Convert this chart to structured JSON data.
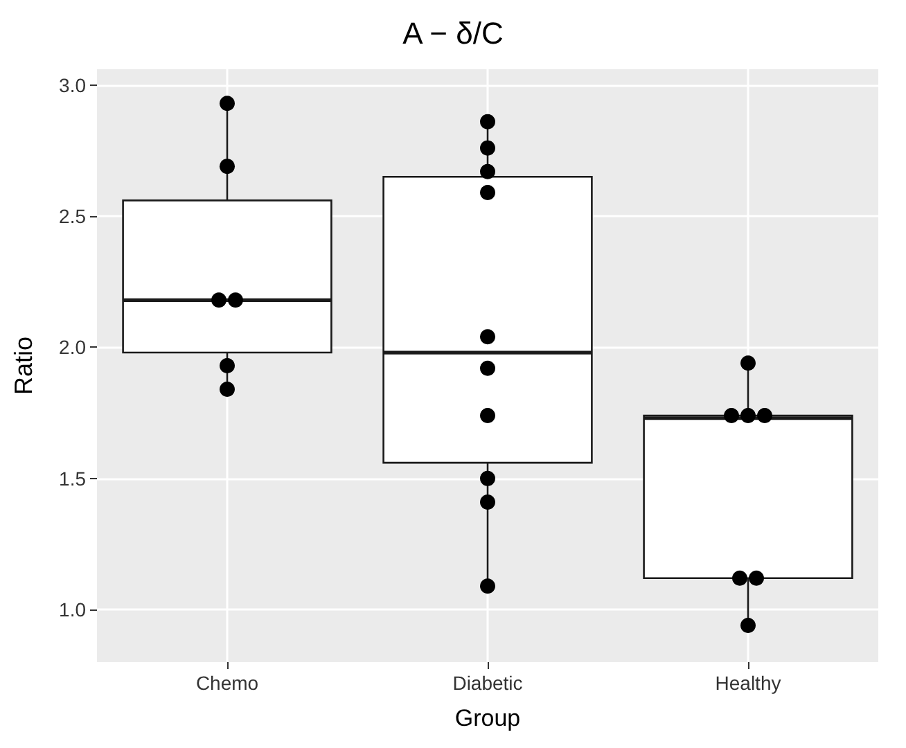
{
  "chart_data": {
    "type": "box",
    "title": "A − δ/C",
    "xlabel": "Group",
    "ylabel": "Ratio",
    "categories": [
      "Chemo",
      "Diabetic",
      "Healthy"
    ],
    "boxes": [
      {
        "low": 1.84,
        "q1": 1.98,
        "median": 2.18,
        "q3": 2.56,
        "high": 2.93
      },
      {
        "low": 1.09,
        "q1": 1.56,
        "median": 1.98,
        "q3": 2.65,
        "high": 2.86
      },
      {
        "low": 0.94,
        "q1": 1.12,
        "median": 1.73,
        "q3": 1.74,
        "high": 1.94
      }
    ],
    "series": [
      {
        "type": "scatter",
        "color": "#000000",
        "x": [
          "Chemo",
          "Chemo",
          "Chemo",
          "Chemo",
          "Chemo",
          "Chemo",
          "Diabetic",
          "Diabetic",
          "Diabetic",
          "Diabetic",
          "Diabetic",
          "Diabetic",
          "Diabetic",
          "Diabetic",
          "Diabetic",
          "Diabetic",
          "Healthy",
          "Healthy",
          "Healthy",
          "Healthy",
          "Healthy",
          "Healthy",
          "Healthy"
        ],
        "values": [
          2.93,
          2.69,
          2.18,
          2.18,
          1.93,
          1.84,
          2.86,
          2.76,
          2.67,
          2.59,
          2.04,
          1.92,
          1.74,
          1.5,
          1.41,
          1.09,
          1.94,
          1.74,
          1.74,
          1.74,
          1.12,
          1.12,
          0.94
        ]
      }
    ],
    "ylim": [
      0.8,
      3.06
    ],
    "yticks": [
      {
        "value": 1,
        "label": "1.0"
      },
      {
        "value": 1.5,
        "label": "1.5"
      },
      {
        "value": 2,
        "label": "2.0"
      },
      {
        "value": 2.5,
        "label": "2.5"
      },
      {
        "value": 3,
        "label": "3.0"
      }
    ],
    "grid": true,
    "marker": "circle"
  }
}
